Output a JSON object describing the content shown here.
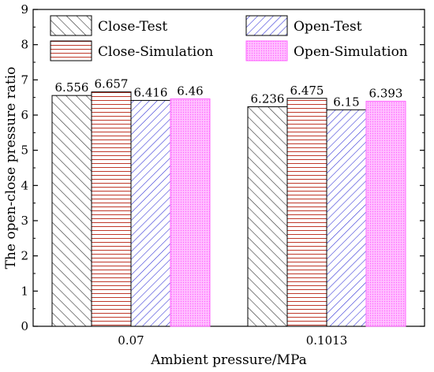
{
  "chart_data": {
    "type": "bar",
    "title": "",
    "xlabel": "Ambient pressure/MPa",
    "ylabel": "The open-close pressure ratio",
    "categories": [
      "0.07",
      "0.1013"
    ],
    "ylim": [
      0,
      9
    ],
    "yticks": [
      0,
      1,
      2,
      3,
      4,
      5,
      6,
      7,
      8,
      9
    ],
    "grid": false,
    "legend_position": "top",
    "series": [
      {
        "name": "Close-Test",
        "values": [
          6.556,
          6.236
        ],
        "labels": [
          "6.556",
          "6.236"
        ],
        "pattern": "diagonal-forward",
        "color": "#333333"
      },
      {
        "name": "Close-Simulation",
        "values": [
          6.657,
          6.475
        ],
        "labels": [
          "6.657",
          "6.475"
        ],
        "pattern": "horizontal-lines",
        "color": "#c0392b"
      },
      {
        "name": "Open-Test",
        "values": [
          6.416,
          6.15
        ],
        "labels": [
          "6.416",
          "6.15"
        ],
        "pattern": "diagonal-backward",
        "color": "#2a2ad6"
      },
      {
        "name": "Open-Simulation",
        "values": [
          6.46,
          6.393
        ],
        "labels": [
          "6.46",
          "6.393"
        ],
        "pattern": "dots",
        "color": "#ff66ff"
      }
    ]
  }
}
